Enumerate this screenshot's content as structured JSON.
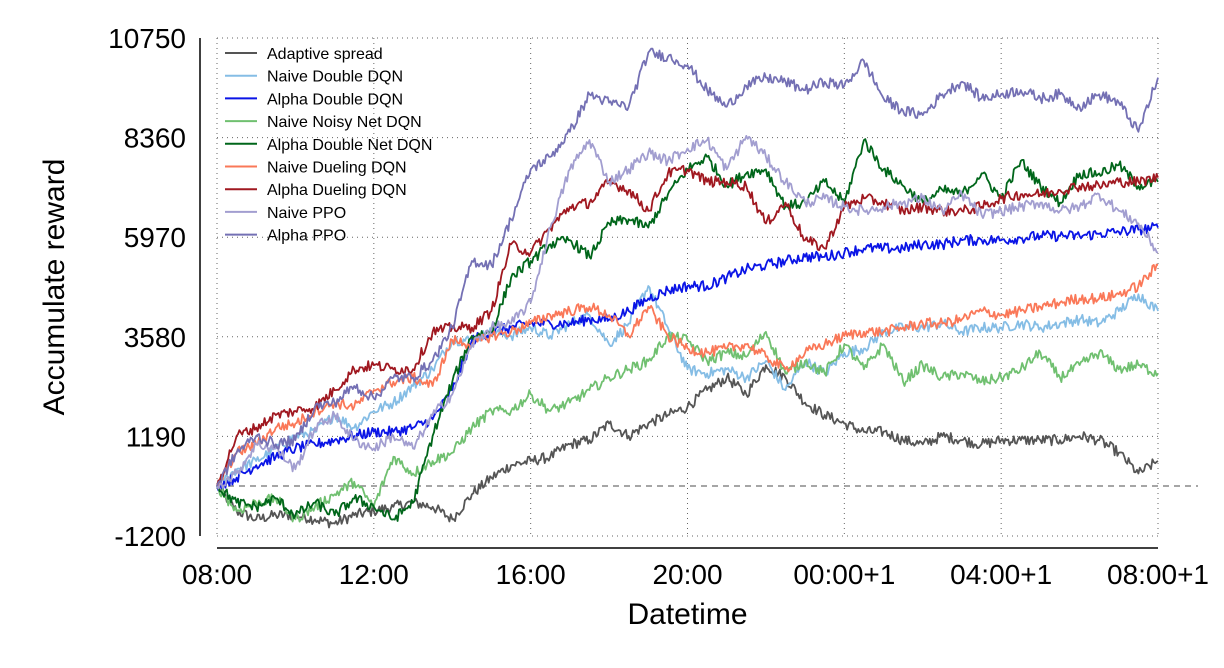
{
  "chart_data": {
    "type": "line",
    "title": "",
    "xlabel": "Datetime",
    "ylabel": "Accumulate reward",
    "x_tick_labels": [
      "08:00",
      "12:00",
      "16:00",
      "20:00",
      "00:00+1",
      "04:00+1",
      "08:00+1"
    ],
    "x_tick_hours": [
      0,
      4,
      8,
      12,
      16,
      20,
      24
    ],
    "xlim_hours": [
      0,
      24
    ],
    "y_ticks": [
      -1200,
      1190,
      3580,
      5970,
      8360,
      10750
    ],
    "y_tick_labels": [
      "-1200",
      "1190",
      "3580",
      "5970",
      "8360",
      "10750"
    ],
    "ylim": [
      -1200,
      10750
    ],
    "zero_line": 0,
    "grid": true,
    "legend_position": "top-left",
    "x": [
      0,
      0.5,
      1,
      1.5,
      2,
      2.5,
      3,
      3.5,
      4,
      4.5,
      5,
      5.5,
      6,
      6.5,
      7,
      7.5,
      8,
      8.5,
      9,
      9.5,
      10,
      10.5,
      11,
      11.5,
      12,
      12.5,
      13,
      13.5,
      14,
      14.5,
      15,
      15.5,
      16,
      16.5,
      17,
      17.5,
      18,
      18.5,
      19,
      19.5,
      20,
      20.5,
      21,
      21.5,
      22,
      22.5,
      23,
      23.5,
      24
    ],
    "series": [
      {
        "name": "Adaptive spread",
        "color": "#555555",
        "values": [
          0,
          -600,
          -800,
          -700,
          -700,
          -800,
          -900,
          -700,
          -600,
          -500,
          -400,
          -500,
          -800,
          -200,
          200,
          500,
          600,
          700,
          1000,
          1100,
          1500,
          1200,
          1500,
          1700,
          1900,
          2300,
          2600,
          2200,
          2900,
          2600,
          2000,
          1700,
          1500,
          1300,
          1300,
          1100,
          1000,
          1200,
          1100,
          1000,
          1100,
          1100,
          1100,
          1100,
          1200,
          1100,
          800,
          300,
          600
        ]
      },
      {
        "name": "Naive Double DQN",
        "color": "#85bde5",
        "values": [
          0,
          400,
          600,
          900,
          1200,
          1300,
          1700,
          1400,
          1800,
          2000,
          2400,
          2800,
          3500,
          3500,
          3700,
          3600,
          3800,
          3600,
          3900,
          4100,
          3400,
          3900,
          4800,
          3800,
          2800,
          2700,
          2800,
          2600,
          3000,
          2300,
          3000,
          2700,
          3200,
          3300,
          3700,
          3800,
          3800,
          3900,
          3700,
          3800,
          3800,
          3900,
          3800,
          3900,
          4000,
          3900,
          4200,
          4600,
          4200
        ]
      },
      {
        "name": "Alpha Double DQN",
        "color": "#0a14e6",
        "values": [
          0,
          200,
          500,
          700,
          900,
          1000,
          1100,
          1200,
          1300,
          1300,
          1400,
          1600,
          2300,
          3500,
          3700,
          3800,
          3900,
          3900,
          3900,
          4000,
          4000,
          4200,
          4500,
          4700,
          4800,
          4800,
          5000,
          5200,
          5300,
          5400,
          5500,
          5500,
          5600,
          5700,
          5700,
          5700,
          5800,
          5800,
          5900,
          5900,
          5900,
          5950,
          6000,
          6000,
          6000,
          6050,
          6100,
          6150,
          6200
        ]
      },
      {
        "name": "Naive Noisy Net DQN",
        "color": "#70c070",
        "values": [
          0,
          -600,
          -400,
          -300,
          -800,
          -500,
          -200,
          100,
          -500,
          700,
          300,
          600,
          800,
          1400,
          1800,
          1800,
          2200,
          1800,
          2000,
          2300,
          2600,
          2800,
          3000,
          3600,
          3500,
          3000,
          3200,
          3100,
          3700,
          2700,
          3000,
          2700,
          3400,
          2800,
          3400,
          2500,
          2900,
          2600,
          2700,
          2500,
          2600,
          2800,
          3200,
          2600,
          2900,
          3200,
          2800,
          2900,
          2700
        ]
      },
      {
        "name": "Alpha Double Net DQN",
        "color": "#00661a",
        "values": [
          0,
          -400,
          -500,
          -300,
          -700,
          -400,
          -700,
          -300,
          -500,
          -800,
          -400,
          1200,
          2500,
          3600,
          3700,
          5000,
          5400,
          5800,
          5900,
          5500,
          6300,
          6400,
          6200,
          7000,
          7600,
          7900,
          7200,
          7500,
          7600,
          6700,
          6800,
          7300,
          6800,
          8300,
          7600,
          7200,
          6800,
          7100,
          7000,
          7500,
          6900,
          7800,
          7200,
          6800,
          7500,
          7500,
          7700,
          7200,
          7300
        ]
      },
      {
        "name": "Naive Dueling DQN",
        "color": "#fa7858",
        "values": [
          0,
          800,
          1000,
          1400,
          1500,
          1800,
          2000,
          1900,
          2300,
          2500,
          2600,
          2400,
          3500,
          3400,
          3600,
          3700,
          3900,
          4100,
          4200,
          4300,
          4100,
          3600,
          4300,
          3600,
          3300,
          3200,
          3300,
          3400,
          3100,
          2800,
          3200,
          3400,
          3600,
          3700,
          3700,
          3800,
          3900,
          3900,
          4000,
          4200,
          4100,
          4200,
          4300,
          4400,
          4500,
          4500,
          4600,
          4800,
          5300
        ]
      },
      {
        "name": "Alpha Dueling DQN",
        "color": "#a01820",
        "values": [
          0,
          1200,
          1400,
          1700,
          1800,
          1900,
          2300,
          2800,
          2900,
          2800,
          2800,
          3700,
          3800,
          3800,
          4200,
          5800,
          5600,
          6200,
          6700,
          6800,
          7300,
          7100,
          6600,
          7500,
          7600,
          7300,
          7300,
          7200,
          6300,
          6800,
          5900,
          5700,
          6700,
          6900,
          6800,
          6600,
          6700,
          6600,
          6600,
          6700,
          6900,
          7000,
          7000,
          7100,
          7200,
          7200,
          7300,
          7300,
          7400
        ]
      },
      {
        "name": "Naive PPO",
        "color": "#a29ed0",
        "values": [
          0,
          300,
          1000,
          900,
          400,
          1400,
          1700,
          1100,
          900,
          1200,
          900,
          1700,
          2200,
          3400,
          3800,
          3900,
          4400,
          6200,
          7600,
          8300,
          7300,
          7600,
          8000,
          7800,
          8100,
          8300,
          7600,
          8400,
          7900,
          7300,
          6800,
          6900,
          6700,
          6600,
          6700,
          6800,
          6900,
          6600,
          7000,
          6500,
          6600,
          6700,
          6800,
          6600,
          6700,
          7000,
          6600,
          6300,
          5600
        ]
      },
      {
        "name": "Alpha PPO",
        "color": "#7470b4",
        "values": [
          0,
          800,
          1200,
          1000,
          1100,
          1900,
          2000,
          2400,
          2100,
          2600,
          2600,
          3000,
          3800,
          5400,
          5300,
          6400,
          7600,
          7900,
          8500,
          9400,
          9200,
          9100,
          10400,
          10300,
          10100,
          9500,
          9100,
          9600,
          9800,
          9700,
          9500,
          9700,
          9600,
          10200,
          9300,
          9000,
          8900,
          9400,
          9700,
          9300,
          9400,
          9500,
          9300,
          9400,
          9100,
          9400,
          9200,
          8500,
          9800
        ]
      }
    ]
  }
}
